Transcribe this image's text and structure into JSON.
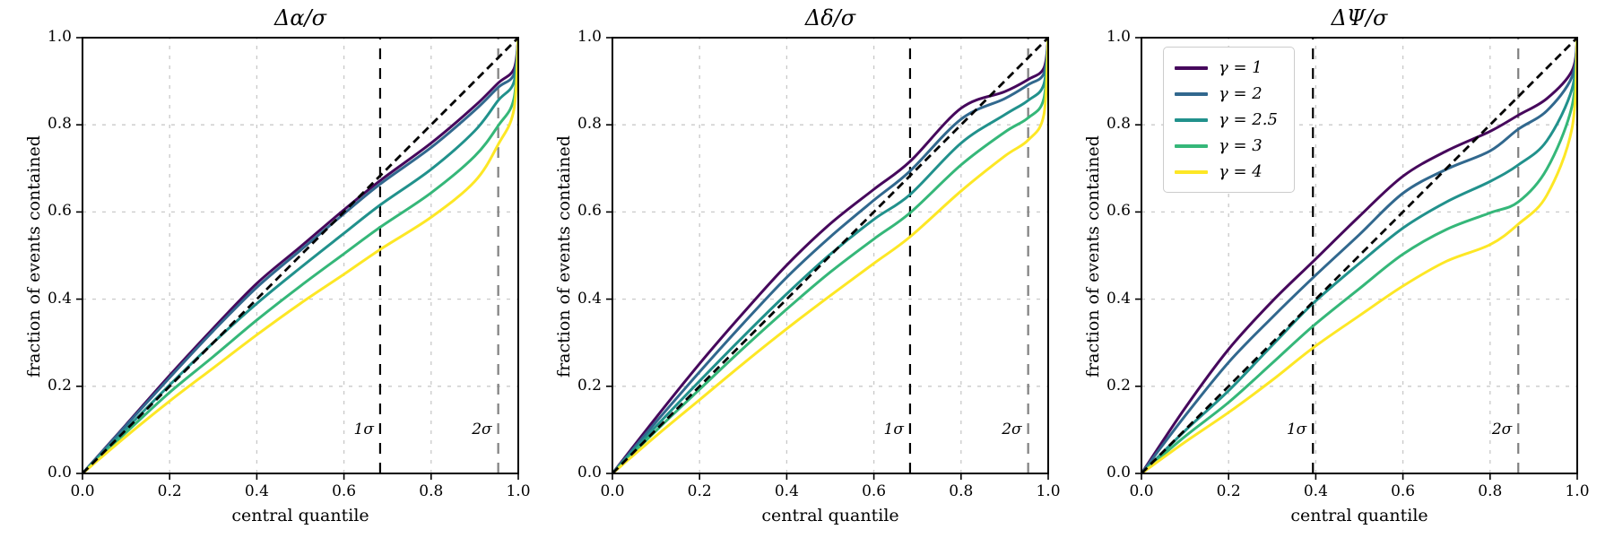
{
  "figure": {
    "background": "#ffffff"
  },
  "reference_colors": {
    "diagonal": "#000000",
    "sigma1_line": "#000000",
    "sigma2_line": "#808080",
    "grid": "#c9c9c9",
    "spine": "#000000"
  },
  "chart_data": [
    {
      "type": "line",
      "title": "Δα/σ",
      "xlabel": "central quantile",
      "ylabel": "fraction of events contained",
      "xlim": [
        0,
        1
      ],
      "ylim": [
        0,
        1
      ],
      "grid": true,
      "xtick_labels": [
        "0.0",
        "0.2",
        "0.4",
        "0.6",
        "0.8",
        "1.0"
      ],
      "ytick_labels": [
        "0.0",
        "0.2",
        "0.4",
        "0.6",
        "0.8",
        "1.0"
      ],
      "diagonal": {
        "style": "dashed",
        "color": "#000000"
      },
      "sigma_lines": [
        {
          "label": "1σ",
          "x": 0.683,
          "color": "#000000"
        },
        {
          "label": "2σ",
          "x": 0.954,
          "color": "#808080"
        }
      ],
      "legend": {
        "show": false,
        "position": "upper left"
      },
      "series": [
        {
          "name": "γ = 1",
          "color": "#46085c",
          "points": [
            [
              0,
              0
            ],
            [
              0.1,
              0.112
            ],
            [
              0.2,
              0.225
            ],
            [
              0.3,
              0.333
            ],
            [
              0.4,
              0.436
            ],
            [
              0.5,
              0.52
            ],
            [
              0.6,
              0.605
            ],
            [
              0.683,
              0.672
            ],
            [
              0.8,
              0.758
            ],
            [
              0.9,
              0.843
            ],
            [
              0.954,
              0.896
            ],
            [
              0.99,
              0.928
            ],
            [
              1,
              1
            ]
          ]
        },
        {
          "name": "γ = 2",
          "color": "#31688e",
          "points": [
            [
              0,
              0
            ],
            [
              0.1,
              0.11
            ],
            [
              0.2,
              0.22
            ],
            [
              0.3,
              0.327
            ],
            [
              0.4,
              0.427
            ],
            [
              0.5,
              0.512
            ],
            [
              0.6,
              0.596
            ],
            [
              0.683,
              0.664
            ],
            [
              0.8,
              0.748
            ],
            [
              0.9,
              0.833
            ],
            [
              0.954,
              0.886
            ],
            [
              0.99,
              0.916
            ],
            [
              1,
              1
            ]
          ]
        },
        {
          "name": "γ = 2.5",
          "color": "#21918c",
          "points": [
            [
              0,
              0
            ],
            [
              0.1,
              0.102
            ],
            [
              0.2,
              0.203
            ],
            [
              0.3,
              0.3
            ],
            [
              0.4,
              0.39
            ],
            [
              0.5,
              0.472
            ],
            [
              0.6,
              0.551
            ],
            [
              0.683,
              0.616
            ],
            [
              0.8,
              0.698
            ],
            [
              0.9,
              0.786
            ],
            [
              0.954,
              0.856
            ],
            [
              0.99,
              0.898
            ],
            [
              1,
              1
            ]
          ]
        },
        {
          "name": "γ = 3",
          "color": "#35b779",
          "points": [
            [
              0,
              0
            ],
            [
              0.1,
              0.094
            ],
            [
              0.2,
              0.186
            ],
            [
              0.3,
              0.268
            ],
            [
              0.4,
              0.352
            ],
            [
              0.5,
              0.43
            ],
            [
              0.6,
              0.504
            ],
            [
              0.683,
              0.565
            ],
            [
              0.8,
              0.644
            ],
            [
              0.9,
              0.728
            ],
            [
              0.954,
              0.798
            ],
            [
              0.99,
              0.86
            ],
            [
              1,
              1
            ]
          ]
        },
        {
          "name": "γ = 4",
          "color": "#fde725",
          "points": [
            [
              0,
              0
            ],
            [
              0.1,
              0.085
            ],
            [
              0.2,
              0.166
            ],
            [
              0.3,
              0.242
            ],
            [
              0.4,
              0.318
            ],
            [
              0.5,
              0.39
            ],
            [
              0.6,
              0.457
            ],
            [
              0.683,
              0.514
            ],
            [
              0.8,
              0.588
            ],
            [
              0.9,
              0.67
            ],
            [
              0.954,
              0.755
            ],
            [
              0.99,
              0.835
            ],
            [
              1,
              1
            ]
          ]
        }
      ]
    },
    {
      "type": "line",
      "title": "Δδ/σ",
      "xlabel": "central quantile",
      "ylabel": "fraction of events contained",
      "xlim": [
        0,
        1
      ],
      "ylim": [
        0,
        1
      ],
      "grid": true,
      "xtick_labels": [
        "0.0",
        "0.2",
        "0.4",
        "0.6",
        "0.8",
        "1.0"
      ],
      "ytick_labels": [
        "0.0",
        "0.2",
        "0.4",
        "0.6",
        "0.8",
        "1.0"
      ],
      "diagonal": {
        "style": "dashed",
        "color": "#000000"
      },
      "sigma_lines": [
        {
          "label": "1σ",
          "x": 0.683,
          "color": "#000000"
        },
        {
          "label": "2σ",
          "x": 0.954,
          "color": "#808080"
        }
      ],
      "legend": {
        "show": false,
        "position": "upper left"
      },
      "series": [
        {
          "name": "γ = 1",
          "color": "#46085c",
          "points": [
            [
              0,
              0
            ],
            [
              0.1,
              0.128
            ],
            [
              0.2,
              0.252
            ],
            [
              0.3,
              0.368
            ],
            [
              0.4,
              0.478
            ],
            [
              0.5,
              0.573
            ],
            [
              0.6,
              0.652
            ],
            [
              0.683,
              0.716
            ],
            [
              0.8,
              0.838
            ],
            [
              0.9,
              0.876
            ],
            [
              0.954,
              0.904
            ],
            [
              0.99,
              0.93
            ],
            [
              1,
              1
            ]
          ]
        },
        {
          "name": "γ = 2",
          "color": "#31688e",
          "points": [
            [
              0,
              0
            ],
            [
              0.1,
              0.118
            ],
            [
              0.2,
              0.233
            ],
            [
              0.3,
              0.344
            ],
            [
              0.4,
              0.45
            ],
            [
              0.5,
              0.543
            ],
            [
              0.6,
              0.627
            ],
            [
              0.683,
              0.694
            ],
            [
              0.8,
              0.813
            ],
            [
              0.9,
              0.86
            ],
            [
              0.954,
              0.892
            ],
            [
              0.99,
              0.918
            ],
            [
              1,
              1
            ]
          ]
        },
        {
          "name": "γ = 2.5",
          "color": "#21918c",
          "points": [
            [
              0,
              0
            ],
            [
              0.1,
              0.108
            ],
            [
              0.2,
              0.212
            ],
            [
              0.3,
              0.314
            ],
            [
              0.4,
              0.412
            ],
            [
              0.5,
              0.503
            ],
            [
              0.6,
              0.583
            ],
            [
              0.683,
              0.64
            ],
            [
              0.8,
              0.758
            ],
            [
              0.9,
              0.823
            ],
            [
              0.954,
              0.856
            ],
            [
              0.99,
              0.893
            ],
            [
              1,
              1
            ]
          ]
        },
        {
          "name": "γ = 3",
          "color": "#35b779",
          "points": [
            [
              0,
              0
            ],
            [
              0.1,
              0.098
            ],
            [
              0.2,
              0.193
            ],
            [
              0.3,
              0.287
            ],
            [
              0.4,
              0.377
            ],
            [
              0.5,
              0.462
            ],
            [
              0.6,
              0.538
            ],
            [
              0.683,
              0.598
            ],
            [
              0.8,
              0.708
            ],
            [
              0.9,
              0.783
            ],
            [
              0.954,
              0.816
            ],
            [
              0.99,
              0.86
            ],
            [
              1,
              1
            ]
          ]
        },
        {
          "name": "γ = 4",
          "color": "#fde725",
          "points": [
            [
              0,
              0
            ],
            [
              0.1,
              0.086
            ],
            [
              0.2,
              0.169
            ],
            [
              0.3,
              0.252
            ],
            [
              0.4,
              0.332
            ],
            [
              0.5,
              0.408
            ],
            [
              0.6,
              0.482
            ],
            [
              0.683,
              0.543
            ],
            [
              0.8,
              0.648
            ],
            [
              0.9,
              0.728
            ],
            [
              0.954,
              0.765
            ],
            [
              0.99,
              0.823
            ],
            [
              1,
              1
            ]
          ]
        }
      ]
    },
    {
      "type": "line",
      "title": "ΔΨ/σ",
      "xlabel": "central quantile",
      "ylabel": "fraction of events contained",
      "xlim": [
        0,
        1
      ],
      "ylim": [
        0,
        1
      ],
      "grid": true,
      "xtick_labels": [
        "0.0",
        "0.2",
        "0.4",
        "0.6",
        "0.8",
        "1.0"
      ],
      "ytick_labels": [
        "0.0",
        "0.2",
        "0.4",
        "0.6",
        "0.8",
        "1.0"
      ],
      "diagonal": {
        "style": "dashed",
        "color": "#000000"
      },
      "sigma_lines": [
        {
          "label": "1σ",
          "x": 0.3935,
          "color": "#000000"
        },
        {
          "label": "2σ",
          "x": 0.8647,
          "color": "#808080"
        }
      ],
      "legend": {
        "show": true,
        "position": "upper left"
      },
      "series": [
        {
          "name": "γ = 1",
          "color": "#46085c",
          "points": [
            [
              0,
              0
            ],
            [
              0.1,
              0.15
            ],
            [
              0.2,
              0.285
            ],
            [
              0.3,
              0.395
            ],
            [
              0.3935,
              0.486
            ],
            [
              0.5,
              0.59
            ],
            [
              0.6,
              0.682
            ],
            [
              0.7,
              0.74
            ],
            [
              0.8,
              0.785
            ],
            [
              0.8647,
              0.822
            ],
            [
              0.93,
              0.86
            ],
            [
              0.988,
              0.924
            ],
            [
              1,
              1
            ]
          ]
        },
        {
          "name": "γ = 2",
          "color": "#31688e",
          "points": [
            [
              0,
              0
            ],
            [
              0.1,
              0.132
            ],
            [
              0.2,
              0.255
            ],
            [
              0.3,
              0.358
            ],
            [
              0.3935,
              0.449
            ],
            [
              0.5,
              0.548
            ],
            [
              0.6,
              0.643
            ],
            [
              0.7,
              0.698
            ],
            [
              0.8,
              0.74
            ],
            [
              0.8647,
              0.79
            ],
            [
              0.93,
              0.832
            ],
            [
              0.988,
              0.91
            ],
            [
              1,
              1
            ]
          ]
        },
        {
          "name": "γ = 2.5",
          "color": "#21918c",
          "points": [
            [
              0,
              0
            ],
            [
              0.1,
              0.098
            ],
            [
              0.2,
              0.19
            ],
            [
              0.3,
              0.294
            ],
            [
              0.3935,
              0.39
            ],
            [
              0.5,
              0.482
            ],
            [
              0.6,
              0.563
            ],
            [
              0.7,
              0.623
            ],
            [
              0.8,
              0.67
            ],
            [
              0.8647,
              0.708
            ],
            [
              0.93,
              0.763
            ],
            [
              0.988,
              0.882
            ],
            [
              1,
              1
            ]
          ]
        },
        {
          "name": "γ = 3",
          "color": "#35b779",
          "points": [
            [
              0,
              0
            ],
            [
              0.1,
              0.085
            ],
            [
              0.2,
              0.163
            ],
            [
              0.3,
              0.253
            ],
            [
              0.3935,
              0.338
            ],
            [
              0.5,
              0.424
            ],
            [
              0.6,
              0.503
            ],
            [
              0.7,
              0.56
            ],
            [
              0.8,
              0.598
            ],
            [
              0.8647,
              0.623
            ],
            [
              0.93,
              0.698
            ],
            [
              0.988,
              0.843
            ],
            [
              1,
              1
            ]
          ]
        },
        {
          "name": "γ = 4",
          "color": "#fde725",
          "points": [
            [
              0,
              0
            ],
            [
              0.1,
              0.072
            ],
            [
              0.2,
              0.14
            ],
            [
              0.3,
              0.214
            ],
            [
              0.3935,
              0.288
            ],
            [
              0.5,
              0.362
            ],
            [
              0.6,
              0.43
            ],
            [
              0.7,
              0.487
            ],
            [
              0.8,
              0.525
            ],
            [
              0.8647,
              0.572
            ],
            [
              0.93,
              0.638
            ],
            [
              0.988,
              0.792
            ],
            [
              1,
              1
            ]
          ]
        }
      ]
    }
  ]
}
